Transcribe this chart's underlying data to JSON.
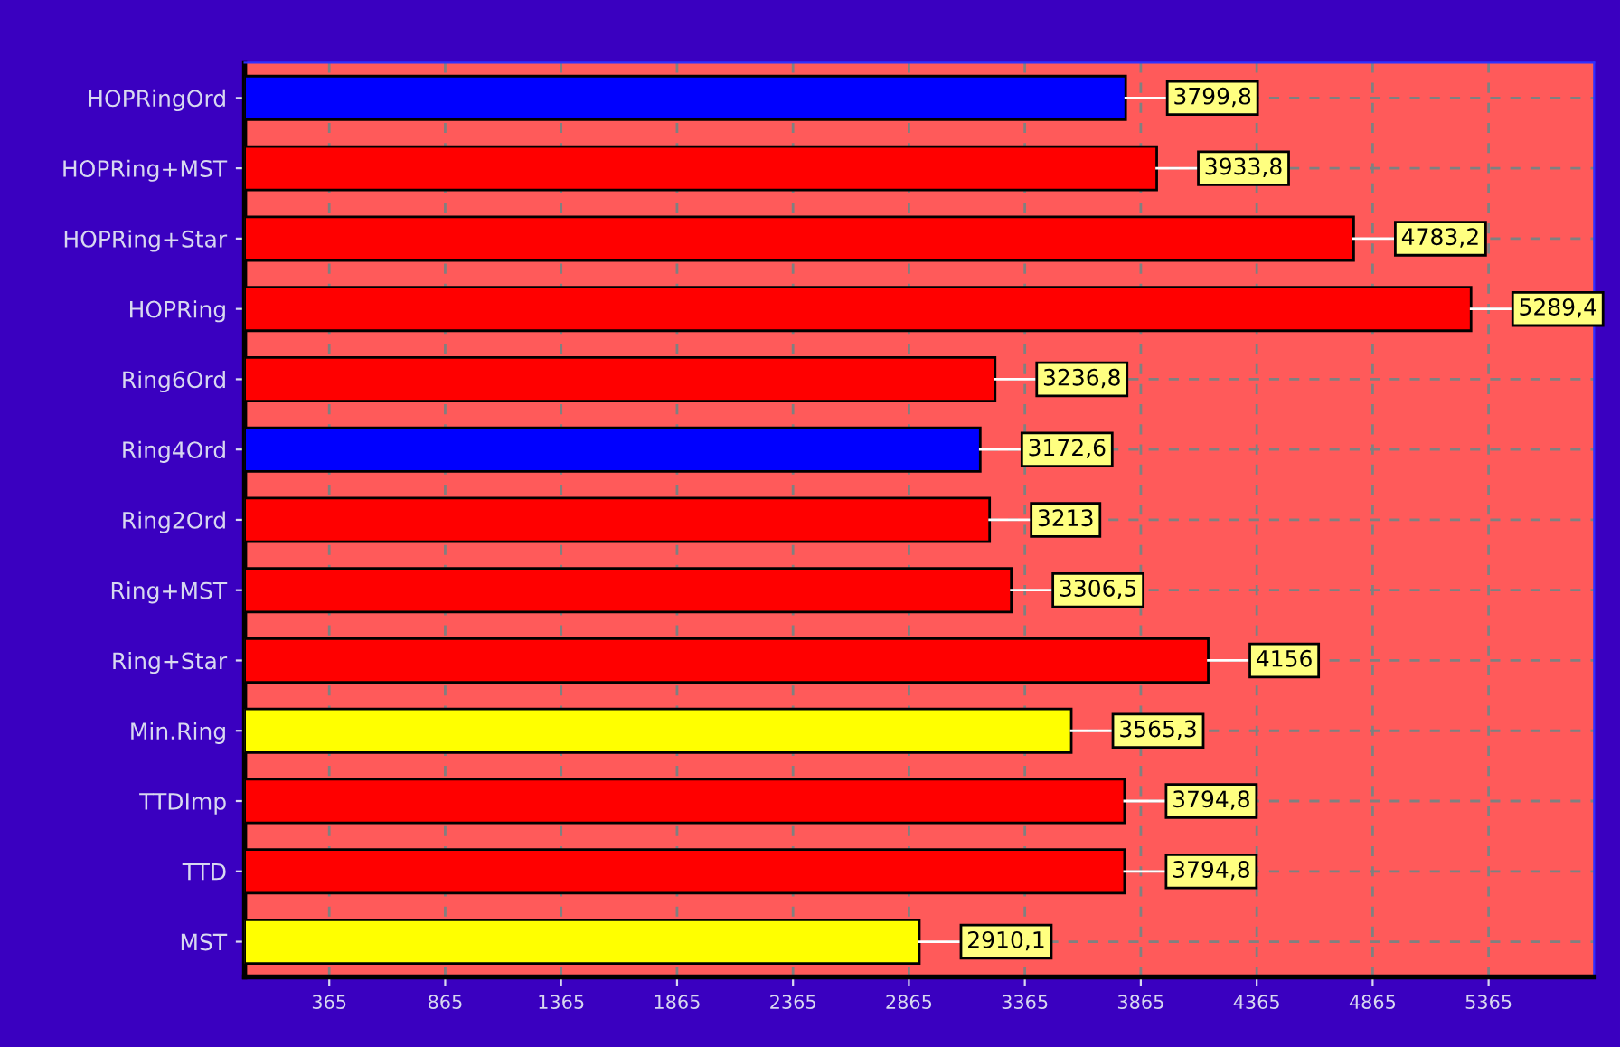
{
  "chart_data": {
    "type": "bar",
    "orientation": "horizontal",
    "categories": [
      "HOPRingOrd",
      "HOPRing+MST",
      "HOPRing+Star",
      "HOPRing",
      "Ring6Ord",
      "Ring4Ord",
      "Ring2Ord",
      "Ring+MST",
      "Ring+Star",
      "Min.Ring",
      "TTDImp",
      "TTD",
      "MST"
    ],
    "values": [
      3799.8,
      3933.8,
      4783.2,
      5289.4,
      3236.8,
      3172.6,
      3213,
      3306.5,
      4156,
      3565.3,
      3794.8,
      3794.8,
      2910.1
    ],
    "colors": [
      "#0000ff",
      "#ff0000",
      "#ff0000",
      "#ff0000",
      "#ff0000",
      "#0000ff",
      "#ff0000",
      "#ff0000",
      "#ff0000",
      "#ffff00",
      "#ff0000",
      "#ff0000",
      "#ffff00"
    ],
    "value_labels": [
      "3799,8",
      "3933,8",
      "4783,2",
      "5289,4",
      "3236,8",
      "3172,6",
      "3213",
      "3306,5",
      "4156",
      "3565,3",
      "3794,8",
      "3794,8",
      "2910,1"
    ],
    "xlim": [
      0,
      5820
    ],
    "xticks": [
      365,
      865,
      1365,
      1865,
      2365,
      2865,
      3365,
      3865,
      4365,
      4865,
      5365
    ],
    "grid": true
  }
}
